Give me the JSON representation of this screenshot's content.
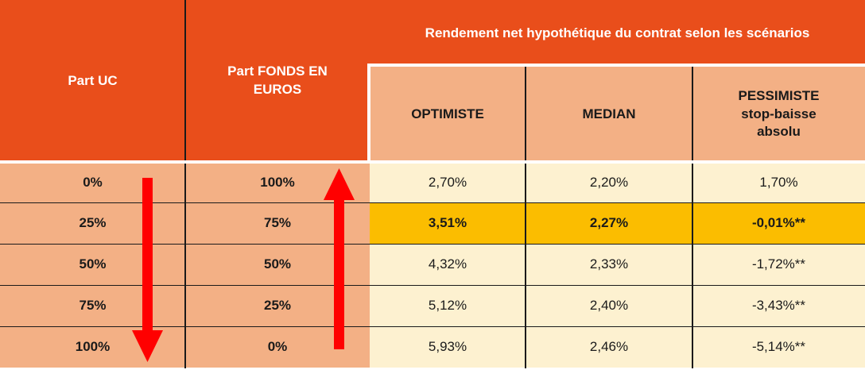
{
  "chart_data": {
    "type": "table",
    "title": "Rendement net hypothétique du contrat selon les scénarios",
    "columns": [
      "Part UC",
      "Part FONDS EN EUROS",
      "OPTIMISTE",
      "MEDIAN",
      "PESSIMISTE stop-baisse absolu"
    ],
    "header": {
      "part_uc": "Part UC",
      "part_fonds_line1": "Part FONDS EN",
      "part_fonds_line2": "EUROS",
      "scenarios_title": "Rendement net hypothétique du contrat selon les scénarios",
      "optimiste": "OPTIMISTE",
      "median": "MEDIAN",
      "pessimiste_line1": "PESSIMISTE",
      "pessimiste_line2": "stop-baisse",
      "pessimiste_line3": "absolu"
    },
    "rows": [
      {
        "uc": "0%",
        "fonds": "100%",
        "optimiste": "2,70%",
        "median": "2,20%",
        "pessimiste": "1,70%"
      },
      {
        "uc": "25%",
        "fonds": "75%",
        "optimiste": "3,51%",
        "median": "2,27%",
        "pessimiste": "-0,01%**"
      },
      {
        "uc": "50%",
        "fonds": "50%",
        "optimiste": "4,32%",
        "median": "2,33%",
        "pessimiste": "-1,72%**"
      },
      {
        "uc": "75%",
        "fonds": "25%",
        "optimiste": "5,12%",
        "median": "2,40%",
        "pessimiste": "-3,43%**"
      },
      {
        "uc": "100%",
        "fonds": "0%",
        "optimiste": "5,93%",
        "median": "2,46%",
        "pessimiste": "-5,14%**"
      }
    ],
    "highlighted_row": 1,
    "arrows": [
      {
        "name": "down-arrow-icon",
        "column": "Part UC",
        "direction": "down"
      },
      {
        "name": "up-arrow-icon",
        "column": "Part FONDS EN EUROS",
        "direction": "up"
      }
    ],
    "colors": {
      "header_dark": "#e94e1b",
      "header_light": "#f3b085",
      "left_cells": "#f3b085",
      "right_cells": "#fdf1d0",
      "highlight": "#fbbd00",
      "arrow": "#ff0000"
    }
  }
}
